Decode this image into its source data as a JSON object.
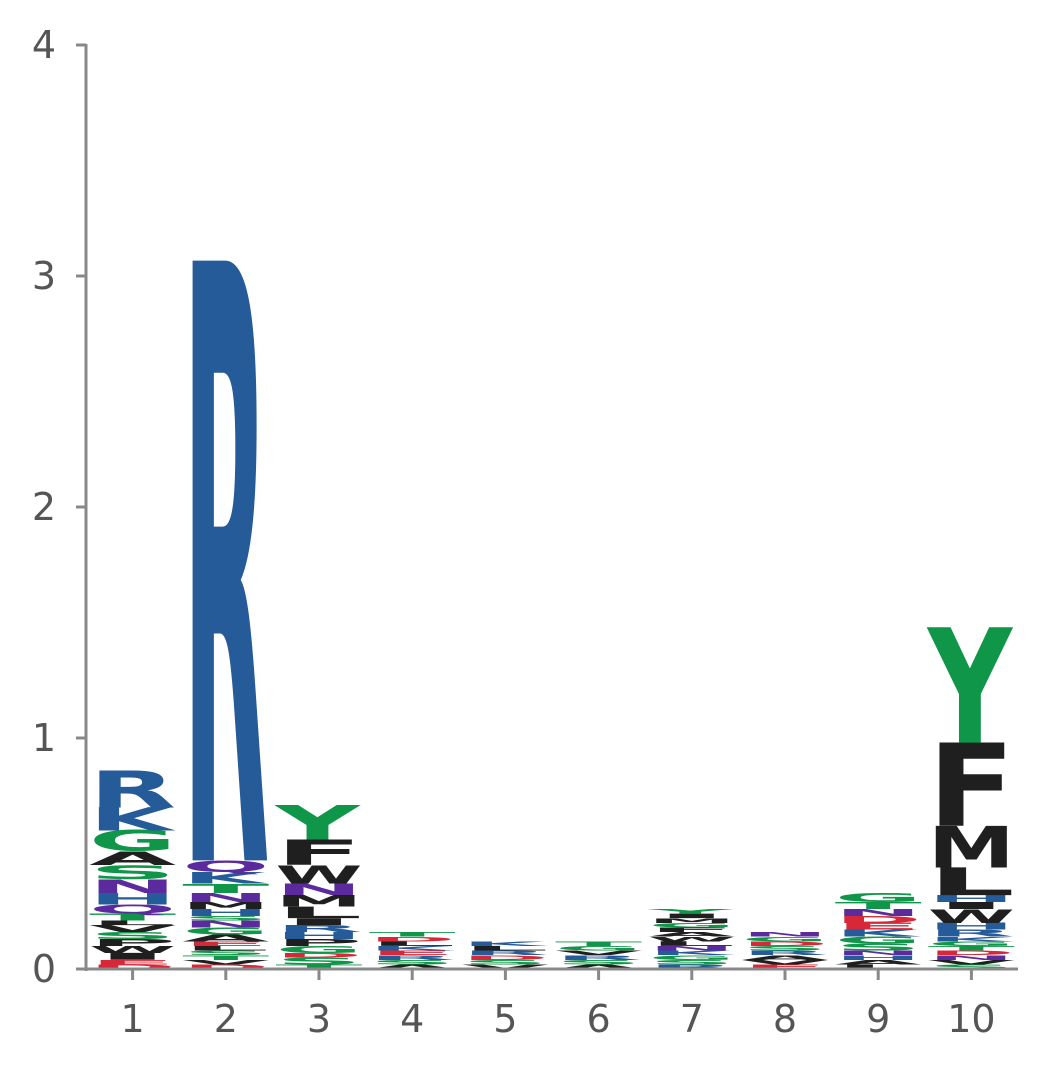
{
  "chart_data": {
    "type": "sequence-logo",
    "title": "",
    "xlabel": "",
    "ylabel": "",
    "ylim": [
      0,
      4
    ],
    "y_ticks": [
      "0",
      "1",
      "2",
      "3",
      "4"
    ],
    "positions": [
      "1",
      "2",
      "3",
      "4",
      "5",
      "6",
      "7",
      "8",
      "9",
      "10"
    ],
    "grid": false,
    "colors": {
      "R": "#265b99",
      "K": "#265b99",
      "H": "#265b99",
      "G": "#109648",
      "S": "#109648",
      "T": "#109648",
      "Y": "#109648",
      "C": "#109648",
      "N": "#5b2a9c",
      "Q": "#5b2a9c",
      "D": "#d62839",
      "E": "#d62839",
      "A": "#1f1f1f",
      "F": "#1f1f1f",
      "I": "#1f1f1f",
      "L": "#1f1f1f",
      "M": "#1f1f1f",
      "P": "#1f1f1f",
      "V": "#1f1f1f",
      "W": "#1f1f1f",
      "axis": "#888888"
    },
    "stacks": [
      [
        [
          "D",
          0.02
        ],
        [
          "E",
          0.02
        ],
        [
          "I",
          0.03
        ],
        [
          "W",
          0.03
        ],
        [
          "P",
          0.03
        ],
        [
          "S",
          0.03
        ],
        [
          "V",
          0.03
        ],
        [
          "L",
          0.02
        ],
        [
          "T",
          0.03
        ],
        [
          "Q",
          0.04
        ],
        [
          "H",
          0.05
        ],
        [
          "N",
          0.06
        ],
        [
          "S",
          0.06
        ],
        [
          "A",
          0.06
        ],
        [
          "G",
          0.09
        ],
        [
          "K",
          0.1
        ],
        [
          "R",
          0.16
        ]
      ],
      [
        [
          "D",
          0.02
        ],
        [
          "V",
          0.02
        ],
        [
          "T",
          0.02
        ],
        [
          "S",
          0.02
        ],
        [
          "L",
          0.02
        ],
        [
          "E",
          0.02
        ],
        [
          "A",
          0.03
        ],
        [
          "G",
          0.03
        ],
        [
          "N",
          0.03
        ],
        [
          "S",
          0.02
        ],
        [
          "H",
          0.03
        ],
        [
          "M",
          0.03
        ],
        [
          "N",
          0.04
        ],
        [
          "T",
          0.04
        ],
        [
          "K",
          0.05
        ],
        [
          "Q",
          0.05
        ],
        [
          "R",
          2.6
        ]
      ],
      [
        [
          "T",
          0.02
        ],
        [
          "S",
          0.03
        ],
        [
          "D",
          0.02
        ],
        [
          "G",
          0.03
        ],
        [
          "P",
          0.03
        ],
        [
          "H",
          0.03
        ],
        [
          "R",
          0.03
        ],
        [
          "I",
          0.03
        ],
        [
          "L",
          0.05
        ],
        [
          "M",
          0.05
        ],
        [
          "N",
          0.05
        ],
        [
          "W",
          0.08
        ],
        [
          "F",
          0.11
        ],
        [
          "Y",
          0.15
        ]
      ],
      [
        [
          "A",
          0.02
        ],
        [
          "S",
          0.02
        ],
        [
          "R",
          0.02
        ],
        [
          "E",
          0.02
        ],
        [
          "K",
          0.02
        ],
        [
          "L",
          0.02
        ],
        [
          "D",
          0.02
        ],
        [
          "T",
          0.02
        ]
      ],
      [
        [
          "V",
          0.02
        ],
        [
          "S",
          0.02
        ],
        [
          "D",
          0.02
        ],
        [
          "R",
          0.02
        ],
        [
          "L",
          0.02
        ],
        [
          "K",
          0.02
        ]
      ],
      [
        [
          "A",
          0.02
        ],
        [
          "S",
          0.02
        ],
        [
          "R",
          0.02
        ],
        [
          "V",
          0.02
        ],
        [
          "G",
          0.02
        ],
        [
          "T",
          0.02
        ]
      ],
      [
        [
          "R",
          0.02
        ],
        [
          "S",
          0.02
        ],
        [
          "G",
          0.02
        ],
        [
          "K",
          0.02
        ],
        [
          "N",
          0.02
        ],
        [
          "L",
          0.02
        ],
        [
          "W",
          0.02
        ],
        [
          "A",
          0.02
        ],
        [
          "F",
          0.02
        ],
        [
          "G",
          0.02
        ],
        [
          "M",
          0.02
        ],
        [
          "I",
          0.02
        ],
        [
          "Y",
          0.02
        ]
      ],
      [
        [
          "E",
          0.02
        ],
        [
          "V",
          0.02
        ],
        [
          "A",
          0.02
        ],
        [
          "R",
          0.02
        ],
        [
          "S",
          0.02
        ],
        [
          "D",
          0.02
        ],
        [
          "G",
          0.02
        ],
        [
          "N",
          0.02
        ]
      ],
      [
        [
          "L",
          0.02
        ],
        [
          "A",
          0.02
        ],
        [
          "H",
          0.02
        ],
        [
          "N",
          0.02
        ],
        [
          "S",
          0.03
        ],
        [
          "G",
          0.03
        ],
        [
          "K",
          0.03
        ],
        [
          "E",
          0.03
        ],
        [
          "D",
          0.03
        ],
        [
          "N",
          0.03
        ],
        [
          "T",
          0.03
        ],
        [
          "G",
          0.04
        ]
      ],
      [
        [
          "S",
          0.02
        ],
        [
          "V",
          0.02
        ],
        [
          "N",
          0.02
        ],
        [
          "D",
          0.02
        ],
        [
          "T",
          0.02
        ],
        [
          "G",
          0.02
        ],
        [
          "K",
          0.02
        ],
        [
          "R",
          0.03
        ],
        [
          "H",
          0.03
        ],
        [
          "W",
          0.06
        ],
        [
          "I",
          0.03
        ],
        [
          "H",
          0.03
        ],
        [
          "L",
          0.12
        ],
        [
          "M",
          0.18
        ],
        [
          "F",
          0.36
        ],
        [
          "Y",
          0.5
        ]
      ]
    ]
  }
}
